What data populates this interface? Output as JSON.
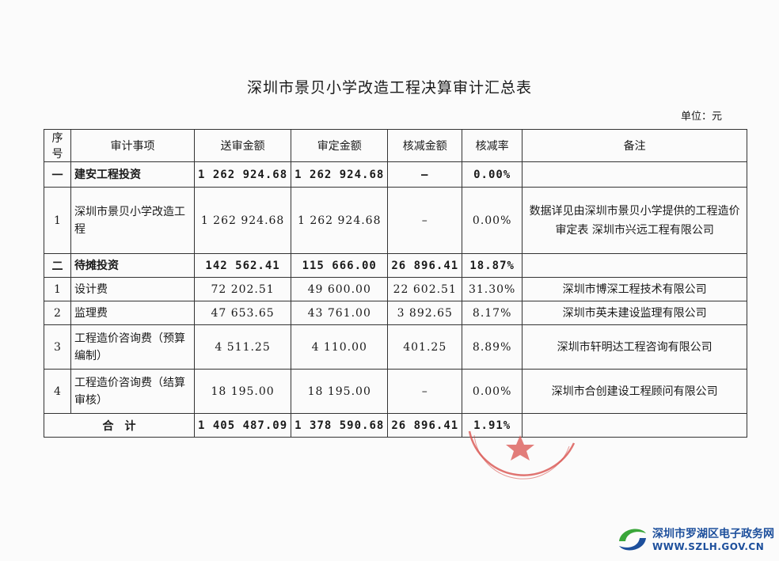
{
  "document": {
    "title": "深圳市景贝小学改造工程决算审计汇总表",
    "unit": "单位：元"
  },
  "table": {
    "headers": [
      "序号",
      "审计事项",
      "送审金额",
      "审定金额",
      "核减金额",
      "核减率",
      "备注"
    ],
    "rows": [
      {
        "no": "一",
        "item": "建安工程投资",
        "submitted": "1 262 924.68",
        "approved": "1 262 924.68",
        "reduced": "–",
        "rate": "0.00%",
        "note": ""
      },
      {
        "no": "1",
        "item": "深圳市景贝小学改造工程",
        "submitted": "1 262 924.68",
        "approved": "1 262 924.68",
        "reduced": "–",
        "rate": "0.00%",
        "note": "数据详见由深圳市景贝小学提供的工程造价审定表 深圳市兴远工程有限公司"
      },
      {
        "no": "二",
        "item": "待摊投资",
        "submitted": "142 562.41",
        "approved": "115 666.00",
        "reduced": "26 896.41",
        "rate": "18.87%",
        "note": ""
      },
      {
        "no": "1",
        "item": "设计费",
        "submitted": "72 202.51",
        "approved": "49 600.00",
        "reduced": "22 602.51",
        "rate": "31.30%",
        "note": "深圳市博深工程技术有限公司"
      },
      {
        "no": "2",
        "item": "监理费",
        "submitted": "47 653.65",
        "approved": "43 761.00",
        "reduced": "3 892.65",
        "rate": "8.17%",
        "note": "深圳市英未建设监理有限公司"
      },
      {
        "no": "3",
        "item": "工程造价咨询费（预算编制）",
        "submitted": "4 511.25",
        "approved": "4 110.00",
        "reduced": "401.25",
        "rate": "8.89%",
        "note": "深圳市轩明达工程咨询有限公司"
      },
      {
        "no": "4",
        "item": "工程造价咨询费（结算审核）",
        "submitted": "18 195.00",
        "approved": "18 195.00",
        "reduced": "–",
        "rate": "0.00%",
        "note": "深圳市合创建设工程顾问有限公司"
      }
    ],
    "total": {
      "label": "合　计",
      "submitted": "1 405 487.09",
      "approved": "1 378 590.68",
      "reduced": "26 896.41",
      "rate": "1.91%",
      "note": ""
    }
  },
  "watermark": {
    "name": "深圳市罗湖区电子政务网",
    "url": "WWW.SZLH.GOV.CN",
    "colors": {
      "blue": "#1d4f9c",
      "green": "#3aa63a"
    }
  },
  "stamp": {
    "color": "#d9534f"
  }
}
